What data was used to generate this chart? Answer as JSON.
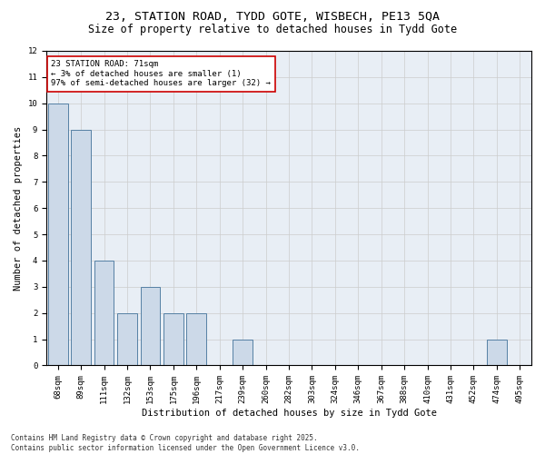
{
  "title_line1": "23, STATION ROAD, TYDD GOTE, WISBECH, PE13 5QA",
  "title_line2": "Size of property relative to detached houses in Tydd Gote",
  "xlabel": "Distribution of detached houses by size in Tydd Gote",
  "ylabel": "Number of detached properties",
  "categories": [
    "68sqm",
    "89sqm",
    "111sqm",
    "132sqm",
    "153sqm",
    "175sqm",
    "196sqm",
    "217sqm",
    "239sqm",
    "260sqm",
    "282sqm",
    "303sqm",
    "324sqm",
    "346sqm",
    "367sqm",
    "388sqm",
    "410sqm",
    "431sqm",
    "452sqm",
    "474sqm",
    "495sqm"
  ],
  "values": [
    10,
    9,
    4,
    2,
    3,
    2,
    2,
    0,
    1,
    0,
    0,
    0,
    0,
    0,
    0,
    0,
    0,
    0,
    0,
    1,
    0
  ],
  "bar_color": "#ccd9e8",
  "bar_edge_color": "#5580a4",
  "annotation_text": "23 STATION ROAD: 71sqm\n← 3% of detached houses are smaller (1)\n97% of semi-detached houses are larger (32) →",
  "annotation_box_color": "#ffffff",
  "annotation_box_edge": "#cc0000",
  "ylim": [
    0,
    12
  ],
  "yticks": [
    0,
    1,
    2,
    3,
    4,
    5,
    6,
    7,
    8,
    9,
    10,
    11,
    12
  ],
  "grid_color": "#cccccc",
  "bg_color": "#e8eef5",
  "footer_line1": "Contains HM Land Registry data © Crown copyright and database right 2025.",
  "footer_line2": "Contains public sector information licensed under the Open Government Licence v3.0.",
  "title_fontsize": 9.5,
  "subtitle_fontsize": 8.5,
  "axis_label_fontsize": 7.5,
  "tick_fontsize": 6.5,
  "annotation_fontsize": 6.5,
  "footer_fontsize": 5.5
}
